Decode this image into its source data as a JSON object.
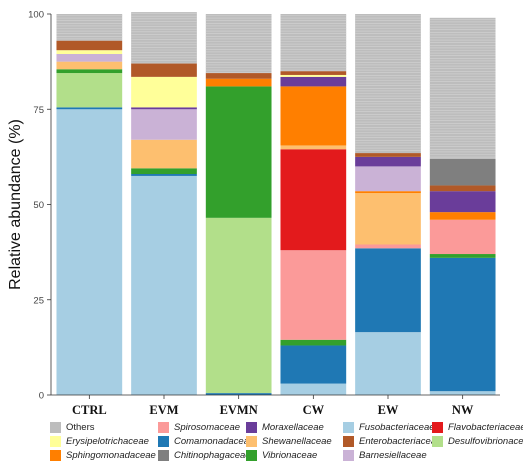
{
  "chart_data": {
    "type": "bar",
    "stacked": true,
    "ylabel": "Relative abundance (%)",
    "xlabel": "",
    "ylim": [
      0,
      100
    ],
    "yticks": [
      0,
      25,
      50,
      75,
      100
    ],
    "grid": false,
    "legend_position": "bottom",
    "categories": [
      "CTRL",
      "EVM",
      "EVMN",
      "CW",
      "EW",
      "NW"
    ],
    "series": [
      {
        "name": "Fusobacteriaceae",
        "color": "#a6cee3",
        "values": [
          75,
          57.5,
          0,
          3,
          16.5,
          1
        ]
      },
      {
        "name": "Comamonadaceae",
        "color": "#1f78b4",
        "values": [
          0.5,
          0.5,
          0.5,
          10,
          22,
          35
        ]
      },
      {
        "name": "Desulfovibrionaceae",
        "color": "#b2df8a",
        "values": [
          9,
          0,
          46,
          0,
          0,
          0
        ]
      },
      {
        "name": "Vibrionaceae",
        "color": "#33a02c",
        "values": [
          1,
          1.5,
          34.5,
          1.5,
          0,
          1
        ]
      },
      {
        "name": "Spirosomaceae",
        "color": "#fb9a99",
        "values": [
          0,
          0,
          0,
          23.5,
          1,
          9
        ]
      },
      {
        "name": "Flavobacteriaceae",
        "color": "#e31a1c",
        "values": [
          0,
          0,
          0,
          26.5,
          0,
          0
        ]
      },
      {
        "name": "Shewanellaceae",
        "color": "#fdbf6f",
        "values": [
          2,
          7.5,
          0,
          1,
          13.5,
          0
        ]
      },
      {
        "name": "Sphingomonadaceae",
        "color": "#ff7f00",
        "values": [
          0,
          0,
          2,
          15.5,
          0.5,
          2
        ]
      },
      {
        "name": "Barnesiellaceae",
        "color": "#cab2d6",
        "values": [
          2,
          8,
          0,
          0,
          6.5,
          0
        ]
      },
      {
        "name": "Moraxellaceae",
        "color": "#6a3d9a",
        "values": [
          0,
          0.5,
          0,
          2.5,
          2.5,
          5.5
        ]
      },
      {
        "name": "Erysipelotrichaceae",
        "color": "#ffff99",
        "values": [
          1,
          8,
          0,
          0.5,
          0,
          0
        ]
      },
      {
        "name": "Enterobacteriaceae",
        "color": "#b15928",
        "values": [
          2.5,
          3.5,
          1.5,
          1,
          1,
          1.5
        ]
      },
      {
        "name": "Chitinophagaceae",
        "color": "#7f7f7f",
        "values": [
          0,
          0,
          0,
          0,
          0,
          7
        ]
      },
      {
        "name": "Others",
        "color": "#bdbdbd",
        "values": [
          7,
          13.5,
          15.5,
          15,
          36.5,
          37
        ]
      }
    ],
    "legend_order": [
      "Others",
      "Erysipelotrichaceae",
      "Sphingomonadaceae",
      "Spirosomaceae",
      "Comamonadaceae",
      "Chitinophagaceae",
      "Moraxellaceae",
      "Shewanellaceae",
      "Vibrionaceae",
      "Fusobacteriaceae",
      "Enterobacteriaceae",
      "Barnesiellaceae",
      "Flavobacteriaceae",
      "Desulfovibrionaceae"
    ]
  }
}
